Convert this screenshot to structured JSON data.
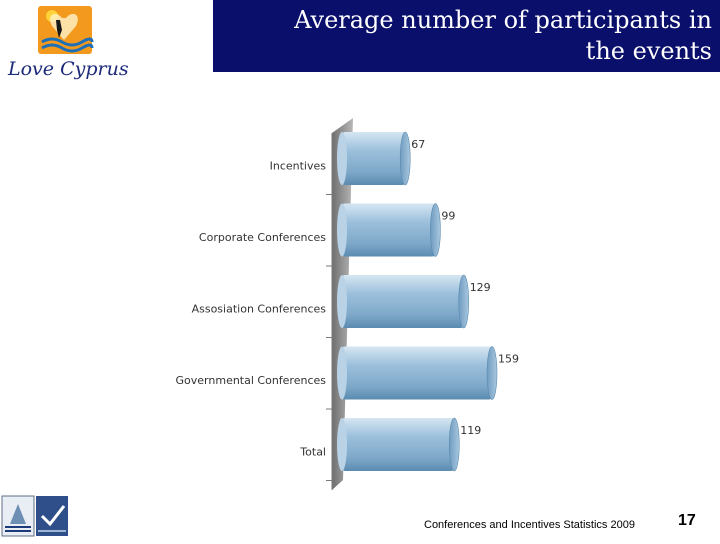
{
  "header": {
    "title_line1": "Average number of participants in",
    "title_line2": "the events"
  },
  "logo": {
    "wordmark": "Love Cyprus"
  },
  "footer": {
    "source": "Conferences and Incentives Statistics 2009",
    "page_number": "17"
  },
  "colors": {
    "title_bg": "#0a0f6b",
    "bar_fill": "#8fb6d3",
    "bar_highlight": "#cfe0ee",
    "bar_shadow": "#5b8bb0",
    "wall": "#8c8c8c"
  },
  "chart_data": {
    "type": "bar",
    "orientation": "horizontal",
    "categories": [
      "Incentives",
      "Corporate Conferences",
      "Assosiation Conferences",
      "Governmental Conferences",
      "Total"
    ],
    "values": [
      67,
      99,
      129,
      159,
      119
    ],
    "xlim": [
      0,
      159
    ],
    "grid": false,
    "legend": "none",
    "title": "",
    "xlabel": "",
    "ylabel": ""
  }
}
